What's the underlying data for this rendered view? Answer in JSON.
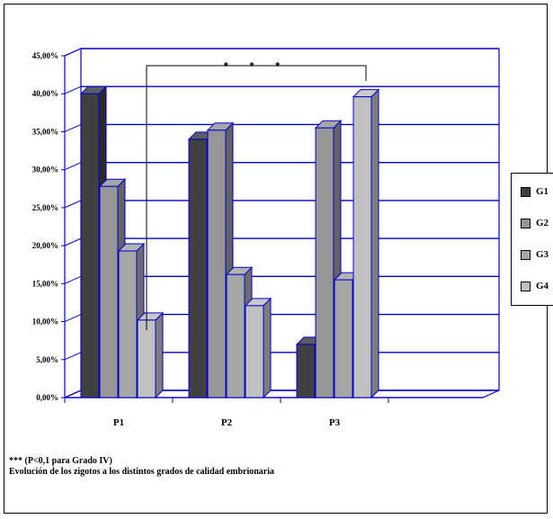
{
  "chart_data": {
    "type": "bar",
    "categories": [
      "P1",
      "P2",
      "P3"
    ],
    "series": [
      {
        "name": "G1",
        "values": [
          40.0,
          34.0,
          7.0
        ],
        "color": "#404040"
      },
      {
        "name": "G2",
        "values": [
          27.8,
          35.2,
          35.5
        ],
        "color": "#969696"
      },
      {
        "name": "G3",
        "values": [
          19.3,
          16.2,
          15.5
        ],
        "color": "#a6a6a6"
      },
      {
        "name": "G4",
        "values": [
          10.2,
          12.1,
          39.6
        ],
        "color": "#c0c0c0"
      }
    ],
    "ylim": [
      0,
      45
    ],
    "yticks": [
      "0,00%",
      "5,00%",
      "10,00%",
      "15,00%",
      "20,00%",
      "25,00%",
      "30,00%",
      "35,00%",
      "40,00%",
      "45,00%"
    ],
    "grid": true,
    "gridline_color": "#0000cc",
    "legend_position": "right",
    "annotation": "* * *",
    "notes": [
      "*** (P<0,1 para Grado IV)",
      "Evolución de los zigotos a los distintos grados de calidad embrionaria"
    ]
  }
}
